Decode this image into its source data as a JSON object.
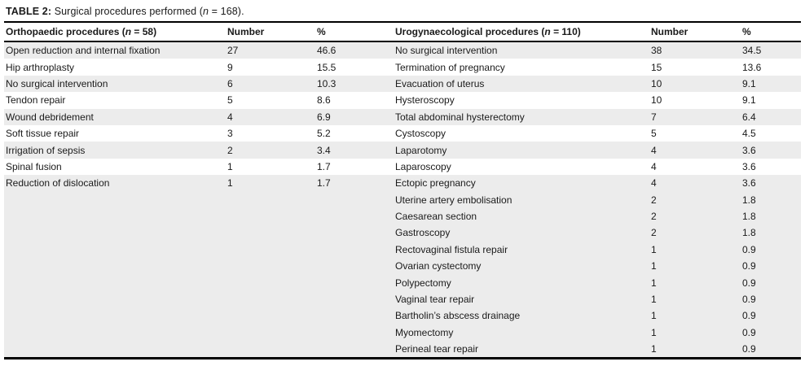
{
  "title": {
    "tag": "TABLE 2:",
    "text": " Surgical procedures performed (",
    "n_symbol": "n",
    "suffix": " = 168)."
  },
  "columns": {
    "left_group": {
      "header_pre": "Orthopaedic procedures (",
      "n_symbol": "n",
      "header_post": " = 58)",
      "number_label": "Number",
      "percent_label": "%"
    },
    "right_group": {
      "header_pre": "Urogynaecological procedures (",
      "n_symbol": "n",
      "header_post": " = 110)",
      "number_label": "Number",
      "percent_label": "%"
    }
  },
  "colors": {
    "stripe_grey": "#ececec",
    "rule_black": "#000000",
    "text": "#1a1a1a"
  },
  "rows": [
    {
      "left": {
        "label": "Open reduction and internal fixation",
        "number": "27",
        "pct": "46.6"
      },
      "right": {
        "label": "No surgical intervention",
        "number": "38",
        "pct": "34.5"
      }
    },
    {
      "left": {
        "label": "Hip arthroplasty",
        "number": "9",
        "pct": "15.5"
      },
      "right": {
        "label": "Termination of pregnancy",
        "number": "15",
        "pct": "13.6"
      }
    },
    {
      "left": {
        "label": "No surgical intervention",
        "number": "6",
        "pct": "10.3"
      },
      "right": {
        "label": "Evacuation of uterus",
        "number": "10",
        "pct": "9.1"
      }
    },
    {
      "left": {
        "label": "Tendon repair",
        "number": "5",
        "pct": "8.6"
      },
      "right": {
        "label": "Hysteroscopy",
        "number": "10",
        "pct": "9.1"
      }
    },
    {
      "left": {
        "label": "Wound debridement",
        "number": "4",
        "pct": "6.9"
      },
      "right": {
        "label": "Total abdominal hysterectomy",
        "number": "7",
        "pct": "6.4"
      }
    },
    {
      "left": {
        "label": "Soft tissue repair",
        "number": "3",
        "pct": "5.2"
      },
      "right": {
        "label": "Cystoscopy",
        "number": "5",
        "pct": "4.5"
      }
    },
    {
      "left": {
        "label": "Irrigation of sepsis",
        "number": "2",
        "pct": "3.4"
      },
      "right": {
        "label": "Laparotomy",
        "number": "4",
        "pct": "3.6"
      }
    },
    {
      "left": {
        "label": "Spinal fusion",
        "number": "1",
        "pct": "1.7"
      },
      "right": {
        "label": "Laparoscopy",
        "number": "4",
        "pct": "3.6"
      }
    },
    {
      "left": {
        "label": "Reduction of dislocation",
        "number": "1",
        "pct": "1.7"
      },
      "right": {
        "label": "Ectopic pregnancy",
        "number": "4",
        "pct": "3.6"
      }
    },
    {
      "left": {
        "label": "",
        "number": "",
        "pct": ""
      },
      "right": {
        "label": "Uterine artery embolisation",
        "number": "2",
        "pct": "1.8"
      }
    },
    {
      "left": {
        "label": "",
        "number": "",
        "pct": ""
      },
      "right": {
        "label": "Caesarean section",
        "number": "2",
        "pct": "1.8"
      }
    },
    {
      "left": {
        "label": "",
        "number": "",
        "pct": ""
      },
      "right": {
        "label": "Gastroscopy",
        "number": "2",
        "pct": "1.8"
      }
    },
    {
      "left": {
        "label": "",
        "number": "",
        "pct": ""
      },
      "right": {
        "label": "Rectovaginal fistula repair",
        "number": "1",
        "pct": "0.9"
      }
    },
    {
      "left": {
        "label": "",
        "number": "",
        "pct": ""
      },
      "right": {
        "label": "Ovarian cystectomy",
        "number": "1",
        "pct": "0.9"
      }
    },
    {
      "left": {
        "label": "",
        "number": "",
        "pct": ""
      },
      "right": {
        "label": "Polypectomy",
        "number": "1",
        "pct": "0.9"
      }
    },
    {
      "left": {
        "label": "",
        "number": "",
        "pct": ""
      },
      "right": {
        "label": "Vaginal tear repair",
        "number": "1",
        "pct": "0.9"
      }
    },
    {
      "left": {
        "label": "",
        "number": "",
        "pct": ""
      },
      "right": {
        "label": "Bartholin’s abscess drainage",
        "number": "1",
        "pct": "0.9"
      }
    },
    {
      "left": {
        "label": "",
        "number": "",
        "pct": ""
      },
      "right": {
        "label": "Myomectomy",
        "number": "1",
        "pct": "0.9"
      }
    },
    {
      "left": {
        "label": "",
        "number": "",
        "pct": ""
      },
      "right": {
        "label": "Perineal tear repair",
        "number": "1",
        "pct": "0.9"
      }
    }
  ]
}
